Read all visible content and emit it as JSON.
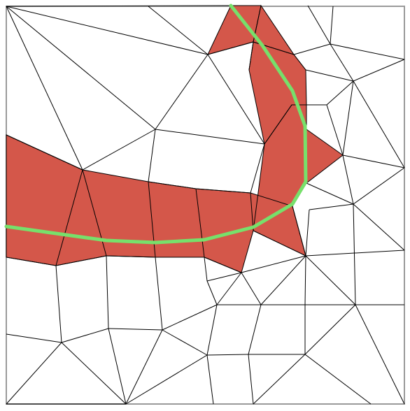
{
  "colors": {
    "background": "#ffffff",
    "frame": "#9a9a9a",
    "mesh_edge": "#000000",
    "highlighted_triangles": "#d4574a",
    "path": "#77e06b"
  }
}
